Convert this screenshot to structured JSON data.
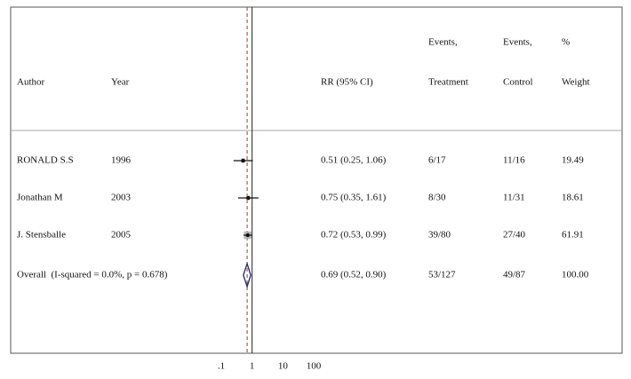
{
  "chart_data": {
    "type": "forest",
    "headers": {
      "author": "Author",
      "year": "Year",
      "rr": "RR (95% CI)",
      "treatment": [
        "Events,",
        "Treatment"
      ],
      "control": [
        "Events,",
        "Control"
      ],
      "weight": [
        "%",
        "Weight"
      ]
    },
    "studies": [
      {
        "author": "RONALD S.S",
        "year": 1996,
        "rr": 0.51,
        "lower": 0.25,
        "upper": 1.06,
        "rr_label": "0.51 (0.25, 1.06)",
        "treatment": "6/17",
        "control": "11/16",
        "weight": 19.49
      },
      {
        "author": "Jonathan M",
        "year": 2003,
        "rr": 0.75,
        "lower": 0.35,
        "upper": 1.61,
        "rr_label": "0.75 (0.35, 1.61)",
        "treatment": "8/30",
        "control": "11/31",
        "weight": 18.61
      },
      {
        "author": "J. Stensballe",
        "year": 2005,
        "rr": 0.72,
        "lower": 0.53,
        "upper": 0.99,
        "rr_label": "0.72 (0.53, 0.99)",
        "treatment": "39/80",
        "control": "27/40",
        "weight": 61.91
      }
    ],
    "overall": {
      "label": "Overall  (I-squared = 0.0%, p = 0.678)",
      "rr": 0.69,
      "lower": 0.52,
      "upper": 0.9,
      "rr_label": "0.69 (0.52, 0.90)",
      "treatment": "53/127",
      "control": "49/87",
      "weight": 100,
      "weight_label": "100.00"
    },
    "xlim": [
      0.1,
      100
    ],
    "xticks": [
      {
        "value": 0.1,
        "label": ".1"
      },
      1,
      10,
      100
    ],
    "log_x": true,
    "box_color": "#b8b8b8",
    "diamond_color": "#1f2a6b",
    "overall_line_color": "#b03030"
  }
}
